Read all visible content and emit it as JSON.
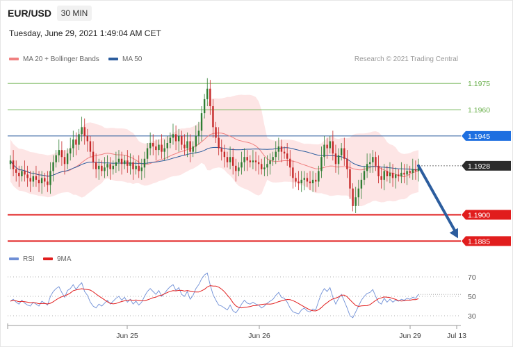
{
  "header": {
    "symbol": "EUR/USD",
    "interval": "30 MIN",
    "datetime": "Tuesday, June 29, 2021 1:49:04 AM CET",
    "credit": "Research © 2021 Trading Central"
  },
  "legend": {
    "ma20_label": "MA 20 + Bollinger Bands",
    "ma50_label": "MA 50",
    "rsi_label": "RSI",
    "ma9_label": "9MA"
  },
  "colors": {
    "ma20": "#f08080",
    "band": "#fde0e0",
    "ma50": "#2c5d9e",
    "bull": "#2e7d32",
    "bear": "#c62828",
    "resistance": "#6ab04c",
    "support": "#e11d1d",
    "current": "#333333",
    "arrow": "#2c5d9e",
    "rsi": "#6f8fd6",
    "rsi_ma": "#e11d1d"
  },
  "chart_data": [
    {
      "type": "candlestick",
      "title": "EUR/USD 30 MIN",
      "ylim": [
        1.188,
        1.1983
      ],
      "current_price": 1.1928,
      "levels": [
        {
          "label": "1.1975",
          "value": 1.1975,
          "kind": "resistance"
        },
        {
          "label": "1.1960",
          "value": 1.196,
          "kind": "resistance"
        },
        {
          "label": "1.1945",
          "value": 1.1945,
          "kind": "pivot"
        },
        {
          "label": "1.1928",
          "value": 1.1928,
          "kind": "current"
        },
        {
          "label": "1.1900",
          "value": 1.19,
          "kind": "support"
        },
        {
          "label": "1.1885",
          "value": 1.1885,
          "kind": "support"
        }
      ],
      "projection": {
        "from": 1.1928,
        "to": 1.1885
      },
      "x_ticks": [
        "Jun 25",
        "Jun 26",
        "Jun 29",
        "Jul 13"
      ],
      "close": [
        1.1931,
        1.1926,
        1.1924,
        1.1922,
        1.1925,
        1.1923,
        1.1921,
        1.1919,
        1.1922,
        1.192,
        1.1918,
        1.1921,
        1.1919,
        1.1917,
        1.1925,
        1.193,
        1.1934,
        1.1937,
        1.1933,
        1.1929,
        1.1935,
        1.1938,
        1.1943,
        1.194,
        1.1946,
        1.195,
        1.1945,
        1.1942,
        1.1936,
        1.193,
        1.1926,
        1.1928,
        1.1925,
        1.1927,
        1.1929,
        1.1926,
        1.1928,
        1.193,
        1.1932,
        1.1929,
        1.1931,
        1.1928,
        1.193,
        1.1926,
        1.1928,
        1.1925,
        1.1927,
        1.1932,
        1.1938,
        1.1941,
        1.1939,
        1.1937,
        1.194,
        1.1936,
        1.1938,
        1.1941,
        1.1944,
        1.1946,
        1.1942,
        1.1945,
        1.194,
        1.1938,
        1.1942,
        1.1936,
        1.1939,
        1.1945,
        1.1948,
        1.1958,
        1.1966,
        1.1972,
        1.1962,
        1.195,
        1.1944,
        1.1938,
        1.1936,
        1.1933,
        1.193,
        1.1933,
        1.1928,
        1.1925,
        1.1927,
        1.193,
        1.1933,
        1.1931,
        1.193,
        1.1931,
        1.193,
        1.1929,
        1.1926,
        1.1927,
        1.1929,
        1.1931,
        1.1933,
        1.1936,
        1.1939,
        1.1936,
        1.1935,
        1.1932,
        1.1927,
        1.1921,
        1.1919,
        1.1918,
        1.192,
        1.1921,
        1.1919,
        1.1918,
        1.192,
        1.1919,
        1.1925,
        1.1933,
        1.194,
        1.1938,
        1.1942,
        1.1935,
        1.1929,
        1.1934,
        1.1938,
        1.1932,
        1.1926,
        1.1915,
        1.1905,
        1.191,
        1.1915,
        1.192,
        1.1925,
        1.1929,
        1.193,
        1.1933,
        1.1928,
        1.1922,
        1.192,
        1.1925,
        1.1922,
        1.1924,
        1.1921,
        1.1923,
        1.1922,
        1.1924,
        1.1923,
        1.1925,
        1.1924,
        1.1926,
        1.1925,
        1.1928
      ],
      "rsi": {
        "ylim": [
          25,
          75
        ],
        "ticks": [
          30,
          50,
          70
        ],
        "values": [
          45,
          47,
          44,
          42,
          46,
          43,
          41,
          40,
          44,
          42,
          40,
          45,
          43,
          41,
          50,
          55,
          58,
          60,
          54,
          49,
          56,
          58,
          62,
          57,
          61,
          64,
          55,
          51,
          44,
          40,
          38,
          42,
          40,
          43,
          46,
          42,
          45,
          48,
          50,
          46,
          49,
          44,
          47,
          42,
          45,
          41,
          44,
          50,
          55,
          58,
          55,
          52,
          56,
          50,
          53,
          57,
          60,
          62,
          56,
          59,
          52,
          50,
          55,
          47,
          51,
          58,
          62,
          68,
          72,
          74,
          62,
          52,
          46,
          41,
          40,
          38,
          36,
          41,
          35,
          33,
          37,
          42,
          46,
          43,
          42,
          44,
          42,
          41,
          38,
          40,
          43,
          45,
          47,
          51,
          54,
          49,
          48,
          44,
          38,
          34,
          33,
          32,
          36,
          38,
          35,
          34,
          37,
          36,
          45,
          53,
          58,
          55,
          59,
          49,
          42,
          48,
          52,
          45,
          38,
          30,
          28,
          34,
          40,
          46,
          50,
          53,
          54,
          57,
          50,
          44,
          42,
          48,
          44,
          47,
          44,
          46,
          45,
          47,
          46,
          48,
          47,
          49,
          48,
          52
        ]
      }
    }
  ]
}
